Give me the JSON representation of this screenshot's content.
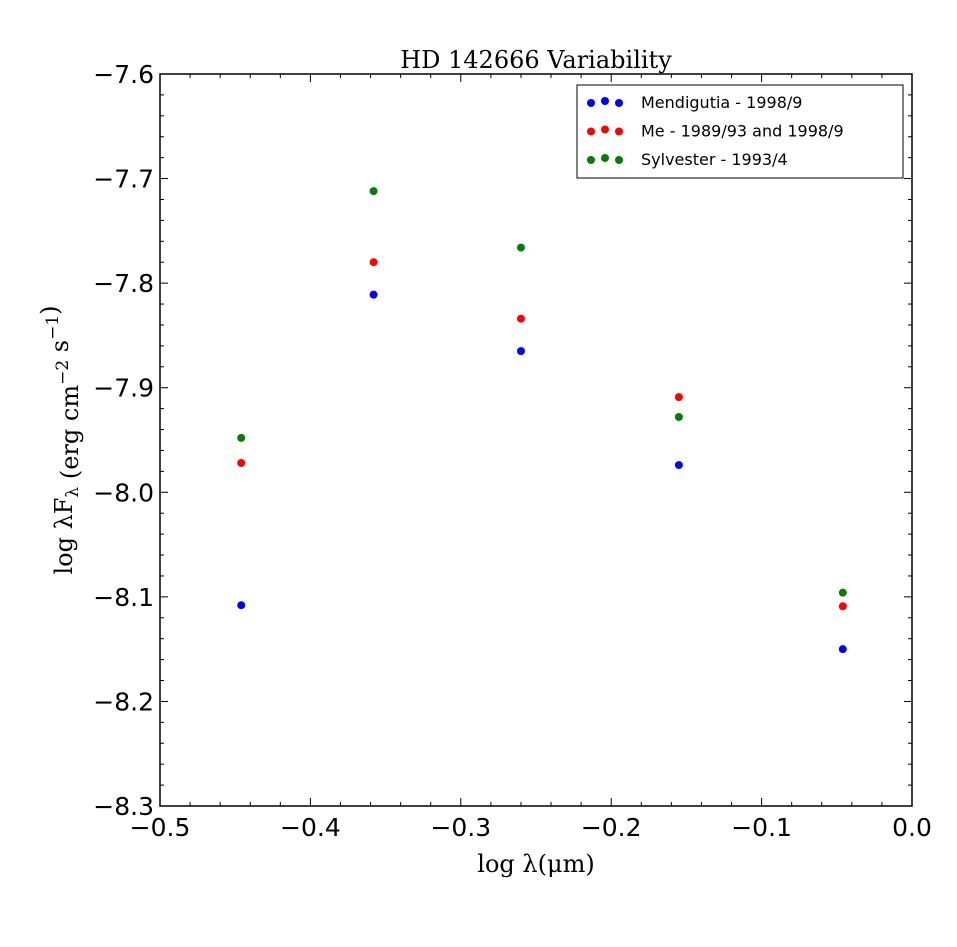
{
  "chart_data": {
    "type": "scatter",
    "title": "HD 142666 Variability",
    "xlabel": "log λ(μm)",
    "ylabel": "log λF_λ (erg cm^−2 s^−1)",
    "xlim": [
      -0.5,
      0.0
    ],
    "ylim": [
      -8.3,
      -7.6
    ],
    "xticks": [
      -0.5,
      -0.4,
      -0.3,
      -0.2,
      -0.1,
      0.0
    ],
    "xtick_labels": [
      "−0.5",
      "−0.4",
      "−0.3",
      "−0.2",
      "−0.1",
      "0.0"
    ],
    "yticks": [
      -7.6,
      -7.7,
      -7.8,
      -7.9,
      -8.0,
      -8.1,
      -8.2,
      -8.3
    ],
    "ytick_labels": [
      "−7.6",
      "−7.7",
      "−7.8",
      "−7.9",
      "−8.0",
      "−8.1",
      "−8.2",
      "−8.3"
    ],
    "grid": false,
    "legend_position": "top-right",
    "series": [
      {
        "name": "Mendigutia - 1998/9",
        "color": "#0000ff",
        "x": [
          -0.446,
          -0.358,
          -0.26,
          -0.155,
          -0.046
        ],
        "y": [
          -8.108,
          -7.811,
          -7.865,
          -7.974,
          -8.15
        ]
      },
      {
        "name": "Me - 1989/93 and 1998/9",
        "color": "#ff0000",
        "x": [
          -0.446,
          -0.358,
          -0.26,
          -0.155,
          -0.046
        ],
        "y": [
          -7.972,
          -7.78,
          -7.834,
          -7.909,
          -8.109
        ]
      },
      {
        "name": "Sylvester - 1993/4",
        "color": "#008000",
        "x": [
          -0.446,
          -0.358,
          -0.26,
          -0.155,
          -0.046
        ],
        "y": [
          -7.948,
          -7.712,
          -7.766,
          -7.928,
          -8.096
        ]
      }
    ]
  }
}
